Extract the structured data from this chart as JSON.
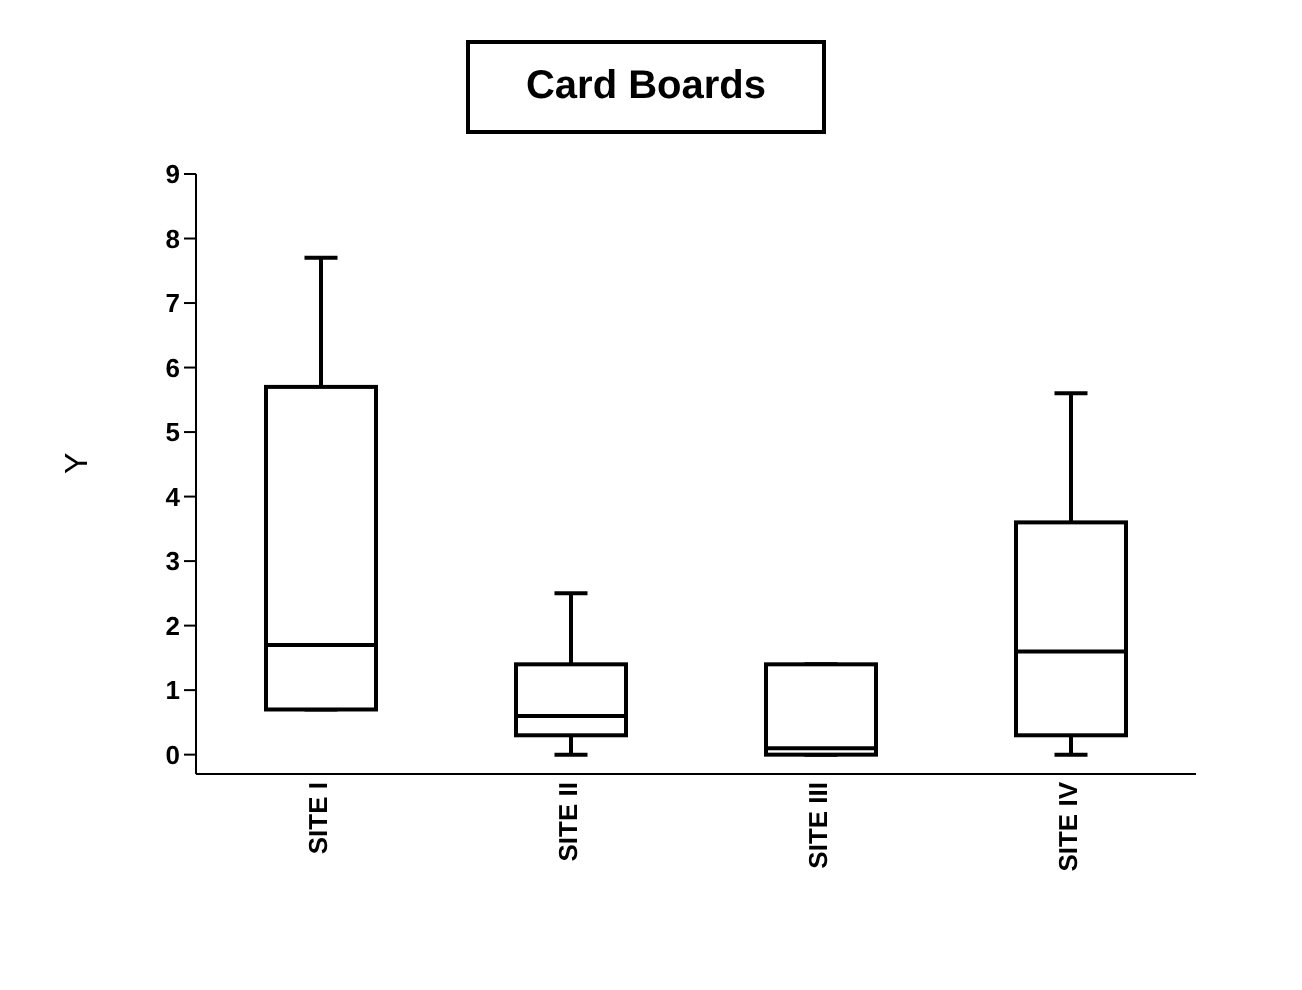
{
  "chart_data": {
    "type": "box",
    "title": "Card Boards",
    "ylabel": "Y",
    "categories": [
      "SITE I",
      "SITE II",
      "SITE III",
      "SITE IV"
    ],
    "color": "#000000",
    "boxes": [
      {
        "low": 0.7,
        "q1": 0.7,
        "median": 1.7,
        "q3": 5.7,
        "high": 7.7
      },
      {
        "low": 0,
        "q1": 0.3,
        "median": 0.6,
        "q3": 1.4,
        "high": 2.5
      },
      {
        "low": 0,
        "q1": 0,
        "median": 0.1,
        "q3": 1.4,
        "high": 1.4
      },
      {
        "low": 0,
        "q1": 0.3,
        "median": 1.6,
        "q3": 3.6,
        "high": 5.6
      }
    ],
    "ylim": [
      -0.3,
      9
    ],
    "yticks": [
      0,
      1,
      2,
      3,
      4,
      5,
      6,
      7,
      8,
      9
    ],
    "grid": false,
    "legend": false
  }
}
